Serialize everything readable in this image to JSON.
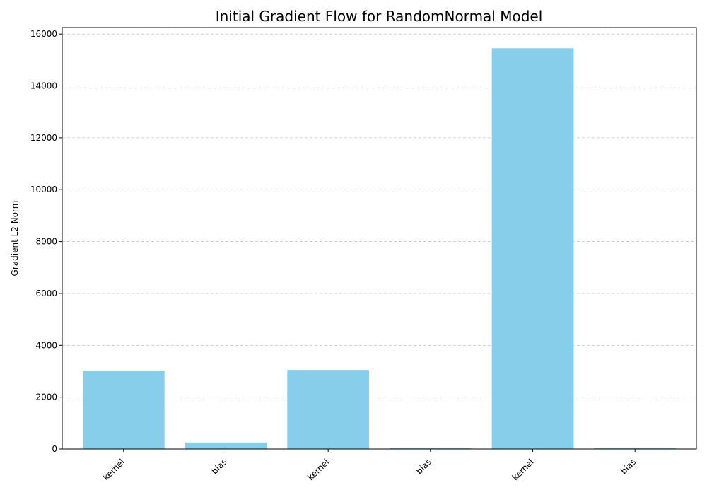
{
  "chart_data": {
    "type": "bar",
    "title": "Initial Gradient Flow for RandomNormal Model",
    "xlabel": "",
    "ylabel": "Gradient L2 Norm",
    "categories": [
      "kernel",
      "bias",
      "kernel",
      "bias",
      "kernel",
      "bias"
    ],
    "values": [
      3020,
      250,
      3050,
      30,
      15450,
      30
    ],
    "ylim": [
      0,
      16250
    ],
    "yticks": [
      0,
      2000,
      4000,
      6000,
      8000,
      10000,
      12000,
      14000,
      16000
    ],
    "ytick_labels": [
      "0",
      "2000",
      "4000",
      "6000",
      "8000",
      "10000",
      "12000",
      "14000",
      "16000"
    ],
    "grid": {
      "axis": "y",
      "style": "dashed"
    },
    "bar_color": "#87ceeb",
    "xtick_rotation": -45
  }
}
